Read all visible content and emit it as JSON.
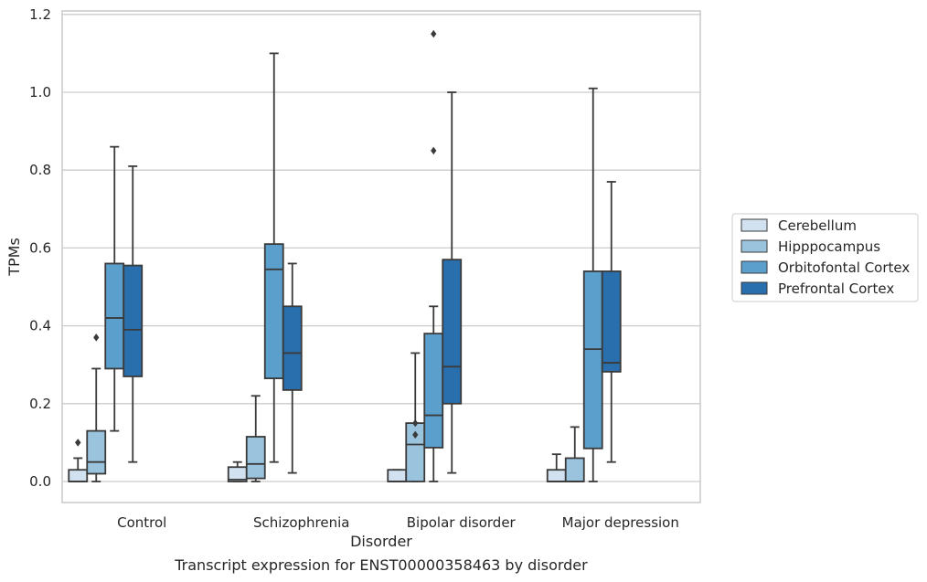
{
  "chart_data": {
    "type": "boxplot",
    "caption": "Transcript expression for ENST00000358463 by disorder",
    "xlabel": "Disorder",
    "ylabel": "TPMs",
    "ylim": [
      -0.055,
      1.21
    ],
    "yticks": [
      "0.0",
      "0.2",
      "0.4",
      "0.6",
      "0.8",
      "1.0",
      "1.2"
    ],
    "grid": "horizontal",
    "legend_position": "right",
    "categories": [
      "Control",
      "Schizophrenia",
      "Bipolar disorder",
      "Major depression"
    ],
    "series": [
      {
        "name": "Cerebellum",
        "color": "#d1e1f0",
        "boxes": [
          {
            "whislo": 0.0,
            "q1": 0.0,
            "med": 0.0,
            "q3": 0.03,
            "whishi": 0.06,
            "fliers": [
              0.1,
              0.1
            ]
          },
          {
            "whislo": 0.0,
            "q1": 0.0,
            "med": 0.005,
            "q3": 0.037,
            "whishi": 0.05,
            "fliers": []
          },
          {
            "whislo": 0.0,
            "q1": 0.0,
            "med": 0.0,
            "q3": 0.03,
            "whishi": 0.03,
            "fliers": []
          },
          {
            "whislo": 0.0,
            "q1": 0.0,
            "med": 0.0,
            "q3": 0.03,
            "whishi": 0.07,
            "fliers": []
          }
        ]
      },
      {
        "name": "Hipppocampus",
        "color": "#9ac3dd",
        "boxes": [
          {
            "whislo": 0.0,
            "q1": 0.02,
            "med": 0.05,
            "q3": 0.13,
            "whishi": 0.29,
            "fliers": [
              0.37
            ]
          },
          {
            "whislo": 0.0,
            "q1": 0.008,
            "med": 0.045,
            "q3": 0.115,
            "whishi": 0.22,
            "fliers": []
          },
          {
            "whislo": 0.0,
            "q1": 0.0,
            "med": 0.095,
            "q3": 0.15,
            "whishi": 0.33,
            "fliers": [
              0.12,
              0.15
            ]
          },
          {
            "whislo": 0.0,
            "q1": 0.0,
            "med": 0.0,
            "q3": 0.06,
            "whishi": 0.14,
            "fliers": []
          }
        ]
      },
      {
        "name": "Orbitofontal Cortex",
        "color": "#5b9fcd",
        "boxes": [
          {
            "whislo": 0.13,
            "q1": 0.29,
            "med": 0.42,
            "q3": 0.56,
            "whishi": 0.86,
            "fliers": []
          },
          {
            "whislo": 0.05,
            "q1": 0.265,
            "med": 0.545,
            "q3": 0.61,
            "whishi": 1.1,
            "fliers": []
          },
          {
            "whislo": 0.0,
            "q1": 0.087,
            "med": 0.17,
            "q3": 0.38,
            "whishi": 0.45,
            "fliers": [
              0.85,
              1.15
            ]
          },
          {
            "whislo": 0.0,
            "q1": 0.085,
            "med": 0.34,
            "q3": 0.54,
            "whishi": 1.01,
            "fliers": []
          }
        ]
      },
      {
        "name": "Prefrontal Cortex",
        "color": "#2a6fad",
        "boxes": [
          {
            "whislo": 0.05,
            "q1": 0.27,
            "med": 0.39,
            "q3": 0.555,
            "whishi": 0.81,
            "fliers": []
          },
          {
            "whislo": 0.022,
            "q1": 0.235,
            "med": 0.33,
            "q3": 0.45,
            "whishi": 0.56,
            "fliers": []
          },
          {
            "whislo": 0.022,
            "q1": 0.2,
            "med": 0.295,
            "q3": 0.57,
            "whishi": 1.0,
            "fliers": []
          },
          {
            "whislo": 0.05,
            "q1": 0.282,
            "med": 0.305,
            "q3": 0.54,
            "whishi": 0.77,
            "fliers": []
          }
        ]
      }
    ]
  }
}
